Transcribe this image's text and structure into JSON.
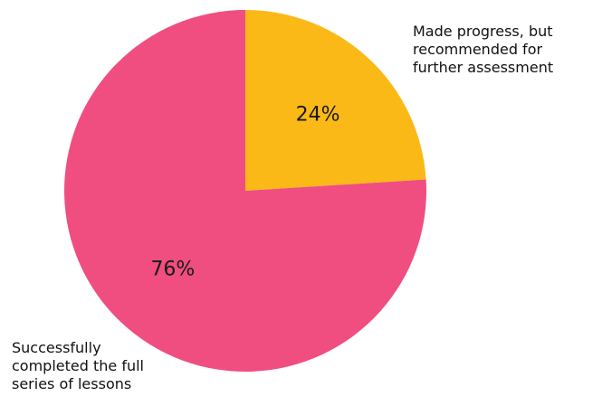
{
  "chart_data": {
    "type": "pie",
    "title": "",
    "start_angle_deg": 0,
    "direction": "clockwise",
    "slices": [
      {
        "value": 24,
        "label": "24%",
        "color": "#FBB917",
        "category": "Made progress, but recommended for further assessment",
        "category_lines": [
          "Made progress, but",
          "recommended for",
          "further assessment"
        ]
      },
      {
        "value": 76,
        "label": "76%",
        "color": "#F04E80",
        "category": "Successfully completed the full series of lessons",
        "category_lines": [
          "Successfully",
          "completed the full",
          "series of lessons"
        ]
      }
    ]
  }
}
